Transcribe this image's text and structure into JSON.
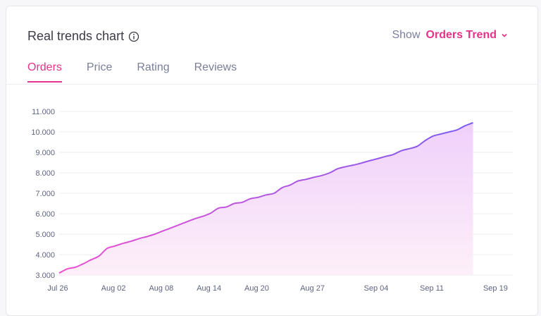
{
  "header": {
    "title": "Real trends chart",
    "show_label": "Show",
    "show_value": "Orders Trend"
  },
  "tabs": [
    {
      "label": "Orders",
      "active": true
    },
    {
      "label": "Price",
      "active": false
    },
    {
      "label": "Rating",
      "active": false
    },
    {
      "label": "Reviews",
      "active": false
    }
  ],
  "colors": {
    "accent": "#e8318a",
    "line_start": "#ee4fcf",
    "line_end": "#7a5cf0",
    "fill_top": "#f0d2fb",
    "fill_bottom": "#fdf0f8"
  },
  "chart_data": {
    "type": "area",
    "title": "",
    "xlabel": "",
    "ylabel": "",
    "ylim": [
      3000,
      11000
    ],
    "yticks": [
      {
        "value": 11000,
        "label": "11.000"
      },
      {
        "value": 10000,
        "label": "10.000"
      },
      {
        "value": 9000,
        "label": "9.000"
      },
      {
        "value": 8000,
        "label": "8.000"
      },
      {
        "value": 7000,
        "label": "7.000"
      },
      {
        "value": 6000,
        "label": "6.000"
      },
      {
        "value": 5000,
        "label": "5.000"
      },
      {
        "value": 4000,
        "label": "4.000"
      },
      {
        "value": 3000,
        "label": "3.000"
      }
    ],
    "xticks": [
      {
        "day": 0,
        "label": "Jul 26"
      },
      {
        "day": 7,
        "label": "Aug 02"
      },
      {
        "day": 13,
        "label": "Aug 08"
      },
      {
        "day": 19,
        "label": "Aug 14"
      },
      {
        "day": 25,
        "label": "Aug 20"
      },
      {
        "day": 32,
        "label": "Aug 27"
      },
      {
        "day": 40,
        "label": "Sep 04"
      },
      {
        "day": 47,
        "label": "Sep 11"
      },
      {
        "day": 55,
        "label": "Sep 19"
      }
    ],
    "xmax": 57,
    "series": [
      {
        "name": "Orders",
        "points": [
          [
            0,
            3100
          ],
          [
            1,
            3300
          ],
          [
            2,
            3380
          ],
          [
            3,
            3550
          ],
          [
            4,
            3750
          ],
          [
            5,
            3930
          ],
          [
            6,
            4300
          ],
          [
            7,
            4420
          ],
          [
            8,
            4550
          ],
          [
            9,
            4650
          ],
          [
            10,
            4780
          ],
          [
            11,
            4880
          ],
          [
            12,
            5000
          ],
          [
            13,
            5150
          ],
          [
            14,
            5300
          ],
          [
            15,
            5450
          ],
          [
            16,
            5600
          ],
          [
            17,
            5750
          ],
          [
            18,
            5870
          ],
          [
            19,
            6020
          ],
          [
            20,
            6270
          ],
          [
            21,
            6330
          ],
          [
            22,
            6500
          ],
          [
            23,
            6560
          ],
          [
            24,
            6730
          ],
          [
            25,
            6800
          ],
          [
            26,
            6920
          ],
          [
            27,
            7000
          ],
          [
            28,
            7270
          ],
          [
            29,
            7400
          ],
          [
            30,
            7600
          ],
          [
            31,
            7680
          ],
          [
            32,
            7780
          ],
          [
            33,
            7870
          ],
          [
            34,
            8000
          ],
          [
            35,
            8200
          ],
          [
            36,
            8300
          ],
          [
            37,
            8380
          ],
          [
            38,
            8480
          ],
          [
            39,
            8590
          ],
          [
            40,
            8690
          ],
          [
            41,
            8800
          ],
          [
            42,
            8900
          ],
          [
            43,
            9080
          ],
          [
            44,
            9180
          ],
          [
            45,
            9300
          ],
          [
            46,
            9580
          ],
          [
            47,
            9800
          ],
          [
            48,
            9900
          ],
          [
            49,
            10000
          ],
          [
            50,
            10100
          ],
          [
            51,
            10300
          ],
          [
            52,
            10450
          ]
        ]
      }
    ]
  }
}
